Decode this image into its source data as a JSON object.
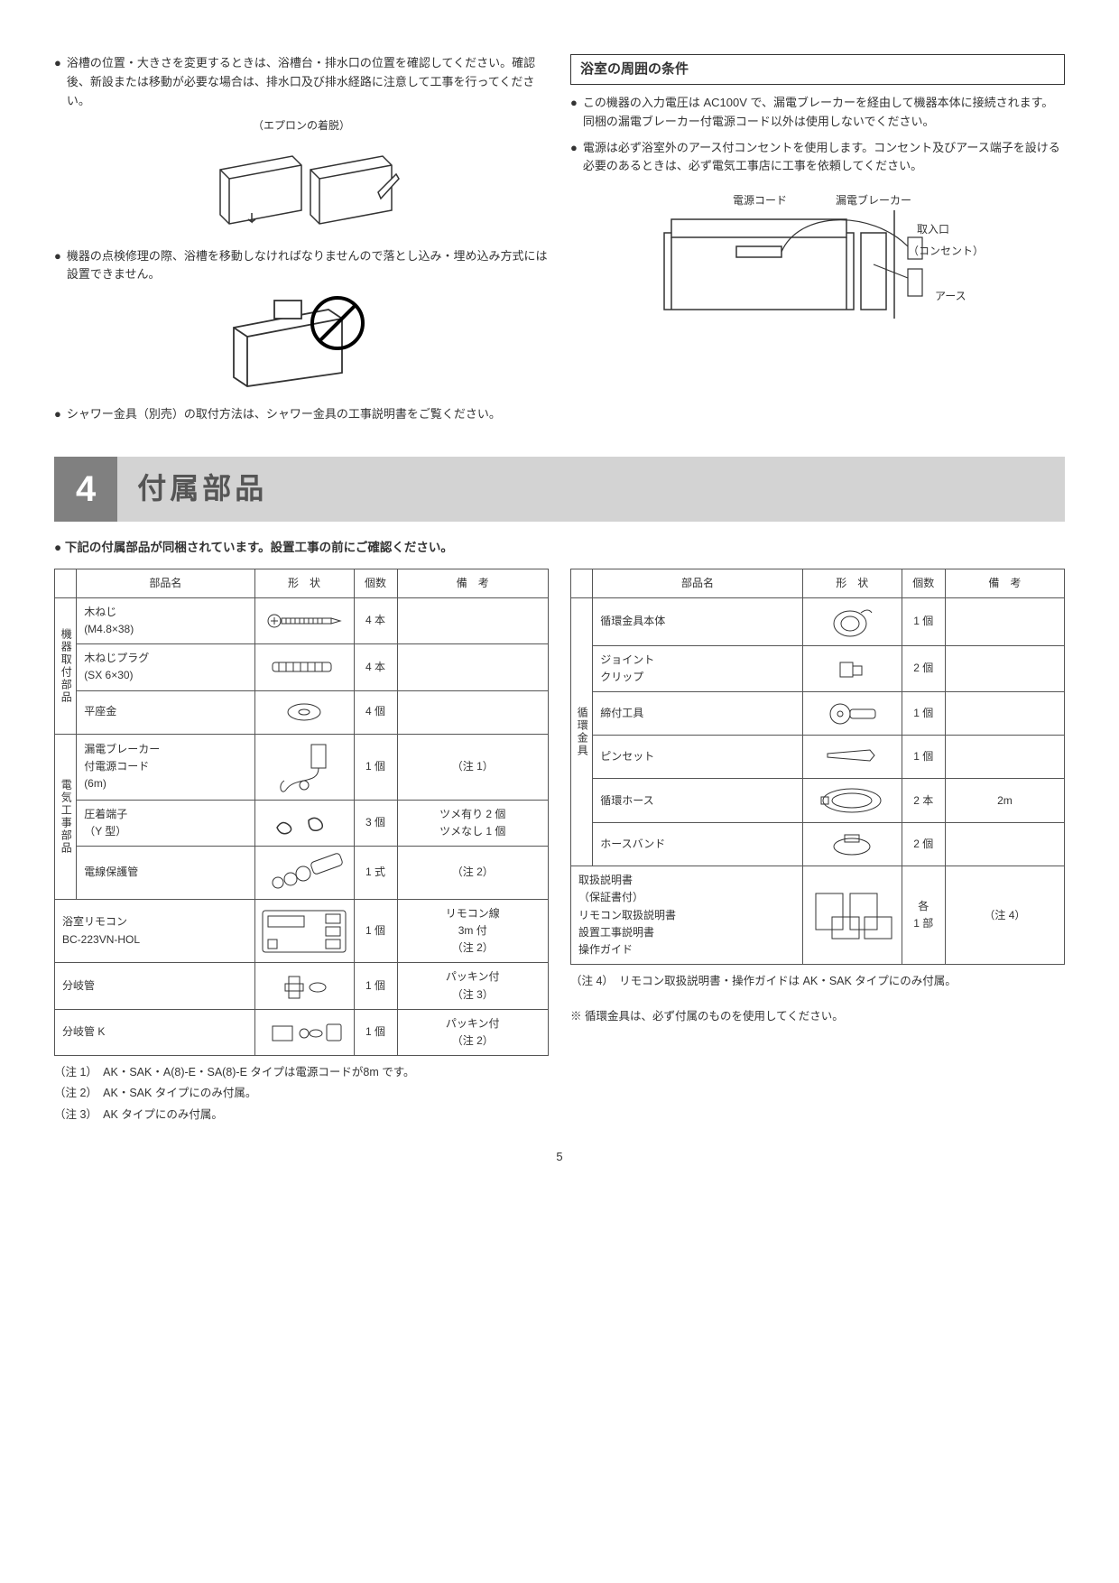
{
  "left": {
    "bullets": [
      "浴槽の位置・大きさを変更するときは、浴槽台・排水口の位置を確認してください。確認後、新設または移動が必要な場合は、排水口及び排水経路に注意して工事を行ってください。",
      "機器の点検修理の際、浴槽を移動しなければなりませんので落とし込み・埋め込み方式には設置できません。",
      "シャワー金具（別売）の取付方法は、シャワー金具の工事説明書をご覧ください。"
    ],
    "caption1": "（エプロンの着脱）"
  },
  "right": {
    "boxTitle": "浴室の周囲の条件",
    "bullets": [
      "この機器の入力電圧は AC100V で、漏電ブレーカーを経由して機器本体に接続されます。同梱の漏電ブレーカー付電源コード以外は使用しないでください。",
      "電源は必ず浴室外のアース付コンセントを使用します。コンセント及びアース端子を設ける必要のあるときは、必ず電気工事店に工事を依頼してください。"
    ],
    "diagLabels": {
      "cord": "電源コード",
      "breaker": "漏電ブレーカー",
      "inlet": "取入口",
      "outlet": "（コンセント）",
      "earth": "アース"
    }
  },
  "heading": {
    "num": "4",
    "title": "付属部品"
  },
  "intro": "● 下記の付属部品が同梱されています。設置工事の前にご確認ください。",
  "tableHeaders": {
    "name": "部品名",
    "shape": "形　状",
    "qty": "個数",
    "note": "備　考"
  },
  "table1": {
    "groups": [
      {
        "category": "機器取付部品",
        "rows": [
          {
            "name": "木ねじ\n(M4.8×38)",
            "qty": "4 本",
            "note": ""
          },
          {
            "name": "木ねじプラグ\n(SX 6×30)",
            "qty": "4 本",
            "note": ""
          },
          {
            "name": "平座金",
            "qty": "4 個",
            "note": ""
          }
        ]
      },
      {
        "category": "電気工事部品",
        "rows": [
          {
            "name": "漏電ブレーカー\n付電源コード\n(6m)",
            "qty": "1 個",
            "note": "（注 1）"
          },
          {
            "name": "圧着端子\n（Y 型）",
            "qty": "3 個",
            "note": "ツメ有り 2 個\nツメなし 1 個"
          },
          {
            "name": "電線保護管",
            "qty": "1 式",
            "note": "（注 2）"
          }
        ]
      }
    ],
    "loose": [
      {
        "name": "浴室リモコン\nBC-223VN-HOL",
        "qty": "1 個",
        "note": "リモコン線\n3m 付\n（注 2）"
      },
      {
        "name": "分岐管",
        "qty": "1 個",
        "note": "パッキン付\n（注 3）"
      },
      {
        "name": "分岐管 K",
        "qty": "1 個",
        "note": "パッキン付\n（注 2）"
      }
    ]
  },
  "table2": {
    "groups": [
      {
        "category": "循環金具",
        "rows": [
          {
            "name": "循環金具本体",
            "qty": "1 個",
            "note": ""
          },
          {
            "name": "ジョイント\nクリップ",
            "qty": "2 個",
            "note": ""
          },
          {
            "name": "締付工具",
            "qty": "1 個",
            "note": ""
          },
          {
            "name": "ピンセット",
            "qty": "1 個",
            "note": ""
          },
          {
            "name": "循環ホース",
            "qty": "2 本",
            "note": "2m"
          },
          {
            "name": "ホースバンド",
            "qty": "2 個",
            "note": ""
          }
        ]
      }
    ],
    "loose": [
      {
        "name": "取扱説明書\n（保証書付）\nリモコン取扱説明書\n設置工事説明書\n操作ガイド",
        "qty": "各\n1 部",
        "note": "（注 4）"
      }
    ]
  },
  "notes1": [
    "（注 1）　AK・SAK・A(8)-E・SA(8)-E タイプは電源コードが8m です。",
    "（注 2）　AK・SAK タイプにのみ付属。",
    "（注 3）　AK タイプにのみ付属。"
  ],
  "notes2": [
    "（注 4）　リモコン取扱説明書・操作ガイドは AK・SAK タイプにのみ付属。"
  ],
  "footnote": "※ 循環金具は、必ず付属のものを使用してください。",
  "pageNum": "5"
}
